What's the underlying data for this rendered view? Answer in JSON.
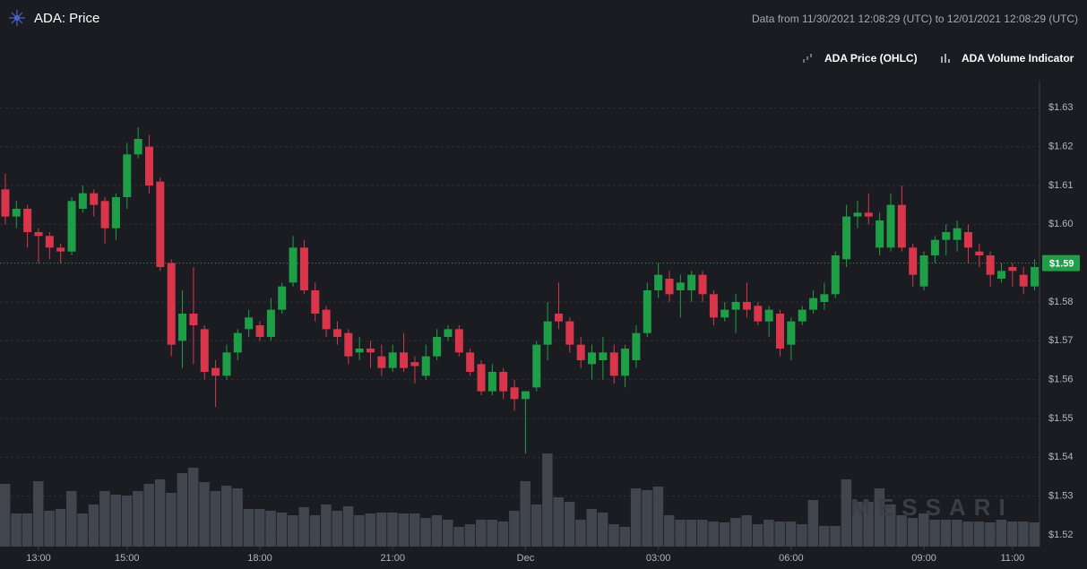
{
  "chart_data": {
    "type": "candlestick",
    "title": "ADA: Price",
    "subtitle": "Data from 11/30/2021 12:08:29 (UTC) to 12/01/2021 12:08:29 (UTC)",
    "legend": [
      "ADA Price (OHLC)",
      "ADA Volume Indicator"
    ],
    "watermark": "MESSARI",
    "up_color": "#1f9e48",
    "down_color": "#d9364c",
    "volume_color": "#41454e",
    "grid": true,
    "x": [
      12.25,
      12.5,
      12.75,
      13,
      13.25,
      13.5,
      13.75,
      14,
      14.25,
      14.5,
      14.75,
      15,
      15.25,
      15.5,
      15.75,
      16,
      16.25,
      16.5,
      16.75,
      17,
      17.25,
      17.5,
      17.75,
      18,
      18.25,
      18.5,
      18.75,
      19,
      19.25,
      19.5,
      19.75,
      20,
      20.25,
      20.5,
      20.75,
      21,
      21.25,
      21.5,
      21.75,
      22,
      22.25,
      22.5,
      22.75,
      23,
      23.25,
      23.5,
      23.75,
      24,
      24.25,
      24.5,
      24.75,
      25,
      25.25,
      25.5,
      25.75,
      26,
      26.25,
      26.5,
      26.75,
      27,
      27.25,
      27.5,
      27.75,
      28,
      28.25,
      28.5,
      28.75,
      29,
      29.25,
      29.5,
      29.75,
      30,
      30.25,
      30.5,
      30.75,
      31,
      31.25,
      31.5,
      31.75,
      32,
      32.25,
      32.5,
      32.75,
      33,
      33.25,
      33.5,
      33.75,
      34,
      34.25,
      34.5,
      34.75,
      35,
      35.25,
      35.5
    ],
    "open": [
      1.609,
      1.602,
      1.604,
      1.598,
      1.597,
      1.594,
      1.593,
      1.604,
      1.608,
      1.606,
      1.599,
      1.607,
      1.618,
      1.62,
      1.611,
      1.59,
      1.57,
      1.577,
      1.573,
      1.563,
      1.561,
      1.567,
      1.573,
      1.574,
      1.571,
      1.578,
      1.585,
      1.594,
      1.583,
      1.578,
      1.573,
      1.572,
      1.567,
      1.568,
      1.566,
      1.563,
      1.567,
      1.5645,
      1.561,
      1.566,
      1.571,
      1.573,
      1.567,
      1.564,
      1.557,
      1.562,
      1.558,
      1.555,
      1.558,
      1.569,
      1.577,
      1.575,
      1.569,
      1.564,
      1.565,
      1.567,
      1.561,
      1.565,
      1.572,
      1.583,
      1.586,
      1.583,
      1.583,
      1.587,
      1.582,
      1.576,
      1.578,
      1.58,
      1.579,
      1.575,
      1.577,
      1.569,
      1.575,
      1.578,
      1.58,
      1.582,
      1.591,
      1.602,
      1.603,
      1.594,
      1.594,
      1.605,
      1.594,
      1.584,
      1.592,
      1.596,
      1.596,
      1.598,
      1.593,
      1.592,
      1.586,
      1.589,
      1.587,
      1.584
    ],
    "high": [
      1.613,
      1.606,
      1.605,
      1.599,
      1.598,
      1.595,
      1.607,
      1.61,
      1.609,
      1.607,
      1.608,
      1.621,
      1.625,
      1.623,
      1.612,
      1.591,
      1.583,
      1.589,
      1.574,
      1.565,
      1.569,
      1.573,
      1.578,
      1.575,
      1.581,
      1.585,
      1.597,
      1.596,
      1.585,
      1.579,
      1.575,
      1.573,
      1.571,
      1.57,
      1.569,
      1.569,
      1.572,
      1.566,
      1.569,
      1.573,
      1.574,
      1.574,
      1.568,
      1.565,
      1.564,
      1.563,
      1.56,
      1.557,
      1.57,
      1.58,
      1.585,
      1.576,
      1.571,
      1.569,
      1.571,
      1.569,
      1.569,
      1.574,
      1.585,
      1.59,
      1.588,
      1.587,
      1.588,
      1.588,
      1.583,
      1.58,
      1.582,
      1.585,
      1.58,
      1.579,
      1.578,
      1.576,
      1.579,
      1.583,
      1.585,
      1.593,
      1.605,
      1.606,
      1.608,
      1.603,
      1.608,
      1.61,
      1.595,
      1.593,
      1.597,
      1.6,
      1.601,
      1.6,
      1.595,
      1.593,
      1.59,
      1.59,
      1.589,
      1.591
    ],
    "low": [
      1.6,
      1.599,
      1.594,
      1.59,
      1.591,
      1.59,
      1.592,
      1.603,
      1.602,
      1.595,
      1.596,
      1.604,
      1.617,
      1.608,
      1.588,
      1.566,
      1.563,
      1.564,
      1.56,
      1.553,
      1.56,
      1.565,
      1.571,
      1.57,
      1.57,
      1.577,
      1.584,
      1.582,
      1.575,
      1.571,
      1.569,
      1.564,
      1.565,
      1.563,
      1.561,
      1.562,
      1.562,
      1.559,
      1.56,
      1.565,
      1.57,
      1.566,
      1.561,
      1.556,
      1.556,
      1.555,
      1.552,
      1.541,
      1.557,
      1.565,
      1.573,
      1.567,
      1.563,
      1.56,
      1.56,
      1.559,
      1.558,
      1.563,
      1.571,
      1.581,
      1.58,
      1.576,
      1.58,
      1.58,
      1.574,
      1.575,
      1.572,
      1.576,
      1.574,
      1.571,
      1.566,
      1.565,
      1.574,
      1.577,
      1.578,
      1.581,
      1.589,
      1.599,
      1.6,
      1.592,
      1.593,
      1.593,
      1.584,
      1.583,
      1.59,
      1.592,
      1.593,
      1.59,
      1.589,
      1.584,
      1.585,
      1.584,
      1.582,
      1.583
    ],
    "close": [
      1.602,
      1.604,
      1.598,
      1.597,
      1.594,
      1.593,
      1.606,
      1.608,
      1.605,
      1.599,
      1.607,
      1.618,
      1.622,
      1.61,
      1.589,
      1.569,
      1.577,
      1.574,
      1.562,
      1.561,
      1.567,
      1.572,
      1.576,
      1.571,
      1.578,
      1.584,
      1.594,
      1.583,
      1.577,
      1.573,
      1.571,
      1.566,
      1.568,
      1.567,
      1.563,
      1.567,
      1.563,
      1.5635,
      1.566,
      1.571,
      1.573,
      1.567,
      1.562,
      1.557,
      1.562,
      1.557,
      1.555,
      1.557,
      1.569,
      1.575,
      1.575,
      1.569,
      1.565,
      1.567,
      1.567,
      1.561,
      1.568,
      1.572,
      1.583,
      1.587,
      1.582,
      1.585,
      1.587,
      1.582,
      1.576,
      1.578,
      1.58,
      1.578,
      1.575,
      1.578,
      1.568,
      1.575,
      1.578,
      1.581,
      1.582,
      1.592,
      1.602,
      1.603,
      1.602,
      1.601,
      1.605,
      1.594,
      1.587,
      1.592,
      1.596,
      1.598,
      1.599,
      1.594,
      1.592,
      1.587,
      1.588,
      1.588,
      1.584,
      1.589
    ],
    "volume": [
      70,
      37,
      37,
      73,
      40,
      42,
      62,
      37,
      47,
      62,
      58,
      57,
      62,
      70,
      75,
      60,
      82,
      88,
      72,
      62,
      68,
      65,
      42,
      42,
      40,
      38,
      35,
      44,
      35,
      47,
      40,
      45,
      35,
      37,
      38,
      38,
      37,
      37,
      32,
      35,
      30,
      22,
      25,
      30,
      30,
      28,
      40,
      73,
      47,
      104,
      55,
      50,
      30,
      42,
      38,
      25,
      22,
      65,
      63,
      67,
      35,
      30,
      30,
      30,
      28,
      27,
      32,
      35,
      25,
      30,
      28,
      28,
      25,
      52,
      23,
      23,
      75,
      50,
      50,
      65,
      47,
      35,
      32,
      37,
      30,
      30,
      30,
      28,
      28,
      27,
      30,
      28,
      28,
      27
    ],
    "volume_ylim": [
      0,
      520
    ],
    "xlim": [
      12.13,
      35.61
    ],
    "xticks": [
      {
        "value": 13,
        "label": "13:00"
      },
      {
        "value": 15,
        "label": "15:00"
      },
      {
        "value": 18,
        "label": "18:00"
      },
      {
        "value": 21,
        "label": "21:00"
      },
      {
        "value": 24,
        "label": "Dec"
      },
      {
        "value": 27,
        "label": "03:00"
      },
      {
        "value": 30,
        "label": "06:00"
      },
      {
        "value": 33,
        "label": "09:00"
      },
      {
        "value": 35,
        "label": "11:00"
      }
    ],
    "ylim": [
      1.517,
      1.637
    ],
    "yticks": [
      {
        "value": 1.52,
        "label": "$1.52"
      },
      {
        "value": 1.53,
        "label": "$1.53"
      },
      {
        "value": 1.54,
        "label": "$1.54"
      },
      {
        "value": 1.55,
        "label": "$1.55"
      },
      {
        "value": 1.56,
        "label": "$1.56"
      },
      {
        "value": 1.57,
        "label": "$1.57"
      },
      {
        "value": 1.58,
        "label": "$1.58"
      },
      {
        "value": 1.59,
        "label": "$1.59"
      },
      {
        "value": 1.6,
        "label": "$1.60"
      },
      {
        "value": 1.61,
        "label": "$1.61"
      },
      {
        "value": 1.62,
        "label": "$1.62"
      },
      {
        "value": 1.63,
        "label": "$1.63"
      }
    ],
    "current_price": {
      "value": 1.59,
      "label": "$1.59"
    }
  }
}
